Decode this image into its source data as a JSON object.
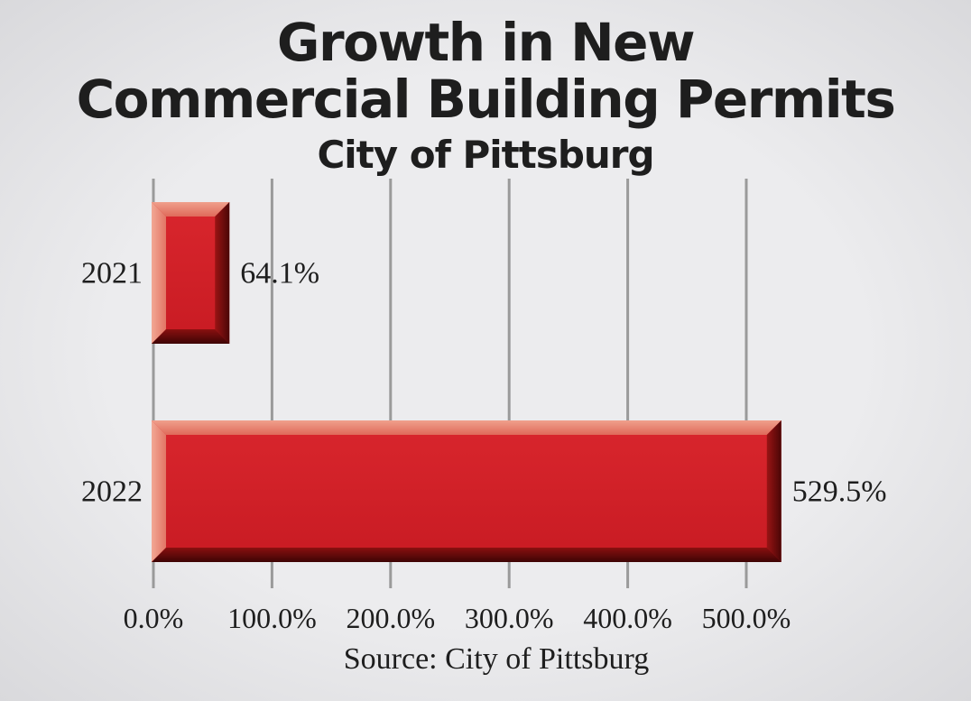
{
  "title_line_1": "Growth in New",
  "title_line_2": "Commercial Building Permits",
  "subtitle": "City of Pittsburg",
  "source": "Source: City of Pittsburg",
  "colors": {
    "bar": "#d42029",
    "bar_highlight": "#e88a76",
    "bar_shadow": "#5a0808",
    "gridline": "#9a9a9a",
    "text": "#1e1e1e"
  },
  "chart_data": {
    "type": "bar",
    "orientation": "horizontal",
    "title": "Growth in New Commercial Building Permits",
    "subtitle": "City of Pittsburg",
    "categories": [
      "2021",
      "2022"
    ],
    "values": [
      64.1,
      529.5
    ],
    "data_labels": [
      "64.1%",
      "529.5%"
    ],
    "xlim": [
      0,
      500
    ],
    "x_ticks": [
      0,
      100,
      200,
      300,
      400,
      500
    ],
    "x_tick_labels": [
      "0.0%",
      "100.0%",
      "200.0%",
      "300.0%",
      "400.0%",
      "500.0%"
    ],
    "grid": true,
    "legend": "none",
    "source": "Source: City of Pittsburg"
  }
}
